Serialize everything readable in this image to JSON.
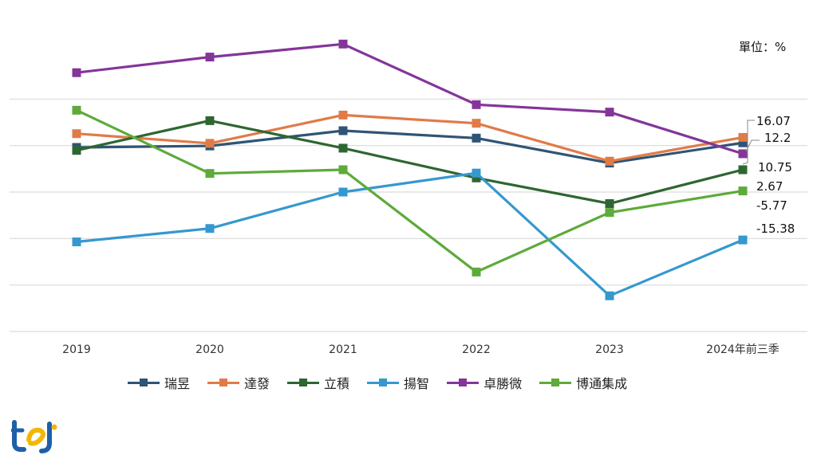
{
  "unit_label": "單位：%",
  "chart_data": {
    "type": "line",
    "title": "",
    "xlabel": "",
    "ylabel": "",
    "ylim": [
      -40,
      35
    ],
    "grid": true,
    "categories": [
      "2019",
      "2020",
      "2021",
      "2022",
      "2023",
      "2024年前三季"
    ],
    "series": [
      {
        "name": "瑞昱",
        "color": "#2f5475",
        "values": [
          9.5,
          9.9,
          14.0,
          12.0,
          5.3,
          10.75
        ]
      },
      {
        "name": "達發",
        "color": "#e07b48",
        "values": [
          13.2,
          10.6,
          18.2,
          16.0,
          5.8,
          12.2
        ]
      },
      {
        "name": "立積",
        "color": "#2e6632",
        "values": [
          8.7,
          16.7,
          9.3,
          1.3,
          -5.6,
          3.5
        ]
      },
      {
        "name": "揚智",
        "color": "#3598cf",
        "values": [
          -15.9,
          -12.3,
          -2.5,
          2.6,
          -30.4,
          -15.38
        ]
      },
      {
        "name": "卓勝微",
        "color": "#84359a",
        "values": [
          29.6,
          33.8,
          37.3,
          21.0,
          19.0,
          7.8
        ]
      },
      {
        "name": "博通集成",
        "color": "#5eaa3b",
        "values": [
          19.5,
          2.5,
          3.5,
          -24.0,
          -8.0,
          -2.2
        ]
      }
    ],
    "data_labels": [
      "16.07",
      "12.2",
      "10.75",
      "2.67",
      "-5.77",
      "-15.38"
    ]
  },
  "logo_text": "tej"
}
